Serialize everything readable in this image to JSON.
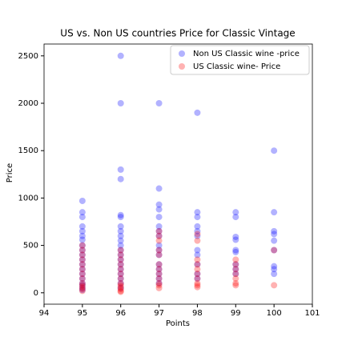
{
  "chart_data": {
    "type": "scatter",
    "title": "US vs. Non US countries Price for Classic Vintage",
    "x_label": "Points",
    "y_label": "Price",
    "xlim": [
      94,
      101
    ],
    "xticks": [
      94,
      95,
      96,
      97,
      98,
      99,
      100,
      101
    ],
    "ylim": [
      -120,
      2625
    ],
    "yticks": [
      0,
      500,
      1000,
      1500,
      2000,
      2500
    ],
    "legend": "upper right",
    "alpha": 0.3,
    "series": [
      {
        "name": "Non US Classic wine -price",
        "color": "#0000ff",
        "x": [
          95,
          95,
          95,
          95,
          95,
          95,
          95,
          95,
          95,
          95,
          95,
          95,
          95,
          95,
          95,
          95,
          95,
          95,
          95,
          96,
          96,
          96,
          96,
          96,
          96,
          96,
          96,
          96,
          96,
          96,
          96,
          96,
          96,
          96,
          96,
          96,
          96,
          96,
          96,
          97,
          97,
          97,
          97,
          97,
          97,
          97,
          97,
          97,
          97,
          97,
          97,
          97,
          97,
          97,
          97,
          98,
          98,
          98,
          98,
          98,
          98,
          98,
          98,
          98,
          98,
          98,
          99,
          99,
          99,
          99,
          99,
          99,
          99,
          99,
          99,
          100,
          100,
          100,
          100,
          100,
          100,
          100,
          100,
          100
        ],
        "values": [
          970,
          850,
          800,
          700,
          650,
          600,
          560,
          500,
          450,
          400,
          350,
          300,
          250,
          200,
          150,
          100,
          80,
          50,
          30,
          2500,
          2000,
          1300,
          1200,
          820,
          800,
          700,
          650,
          600,
          550,
          500,
          450,
          400,
          350,
          300,
          250,
          200,
          150,
          100,
          50,
          2000,
          1100,
          930,
          880,
          800,
          700,
          650,
          600,
          500,
          450,
          400,
          300,
          250,
          200,
          150,
          100,
          1900,
          850,
          800,
          700,
          650,
          600,
          450,
          400,
          300,
          200,
          150,
          850,
          800,
          590,
          560,
          450,
          430,
          300,
          250,
          200,
          1500,
          850,
          650,
          620,
          550,
          450,
          280,
          250,
          200
        ]
      },
      {
        "name": "US Classic wine- Price",
        "color": "#ff0000",
        "x": [
          95,
          95,
          95,
          95,
          95,
          95,
          95,
          95,
          95,
          95,
          95,
          95,
          95,
          96,
          96,
          96,
          96,
          96,
          96,
          96,
          96,
          96,
          96,
          96,
          96,
          96,
          97,
          97,
          97,
          97,
          97,
          97,
          97,
          97,
          97,
          97,
          97,
          97,
          98,
          98,
          98,
          98,
          98,
          98,
          98,
          98,
          98,
          98,
          99,
          99,
          99,
          99,
          99,
          99,
          99,
          100,
          100
        ],
        "values": [
          500,
          450,
          400,
          350,
          300,
          250,
          200,
          150,
          100,
          80,
          60,
          40,
          20,
          450,
          400,
          350,
          300,
          250,
          200,
          150,
          100,
          80,
          60,
          40,
          20,
          10,
          650,
          600,
          550,
          450,
          400,
          300,
          250,
          200,
          150,
          100,
          80,
          50,
          620,
          550,
          350,
          300,
          250,
          200,
          150,
          100,
          80,
          60,
          350,
          300,
          250,
          200,
          150,
          100,
          80,
          450,
          80
        ]
      }
    ]
  }
}
